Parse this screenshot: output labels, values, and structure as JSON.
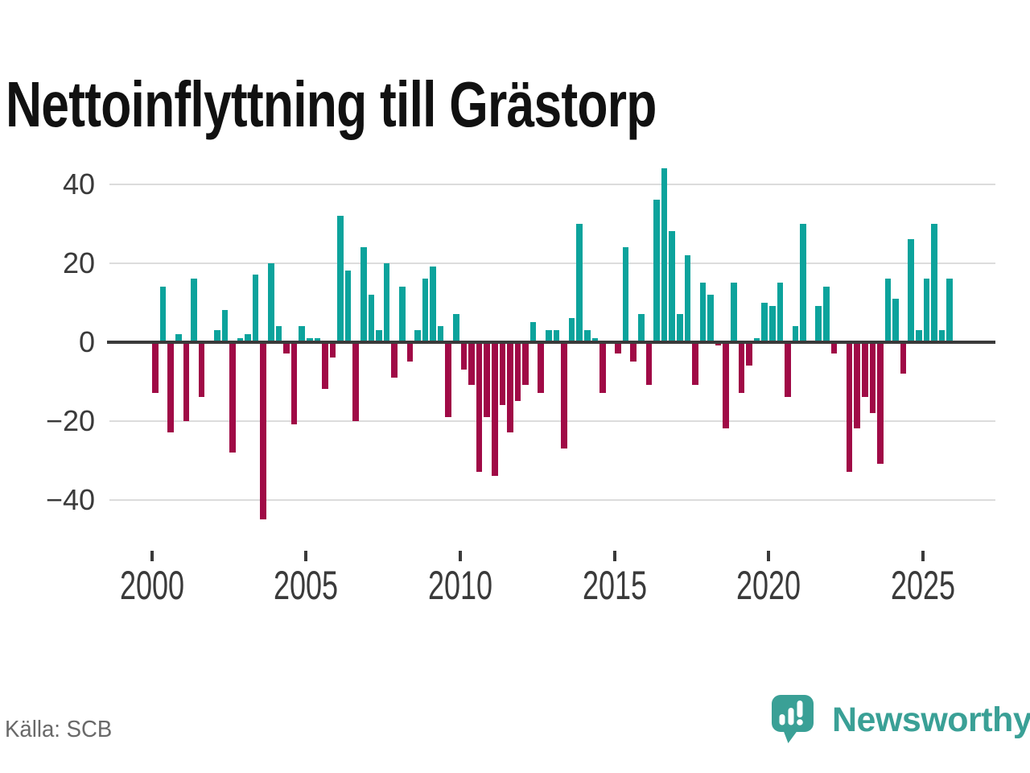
{
  "title": "Nettoinflyttning till Grästorp",
  "source": "Källa: SCB",
  "brand": {
    "name": "Newsworthy",
    "icon": "newsworthy-bubble-chart-icon",
    "color": "#3aa096"
  },
  "colors": {
    "positive": "#0ca39c",
    "negative": "#a00a46",
    "axis": "#3a3a3a",
    "gridline": "#dcdcdc",
    "tick_label": "#3a3a3a",
    "title": "#111111",
    "source_text": "#696969"
  },
  "y_axis": {
    "tick_labels": [
      "40",
      "20",
      "0",
      "−20",
      "−40"
    ],
    "tick_values": [
      40,
      20,
      0,
      -20,
      -40
    ]
  },
  "x_axis": {
    "tick_years": [
      "2000",
      "2005",
      "2010",
      "2015",
      "2020",
      "2025"
    ]
  },
  "chart_data": {
    "type": "bar",
    "title": "Nettoinflyttning till Grästorp",
    "xlabel": "",
    "ylabel": "",
    "grid": true,
    "legend": false,
    "ylim": [
      -48,
      46
    ],
    "y_ticks": [
      40,
      20,
      0,
      -20,
      -40
    ],
    "x_tick_years": [
      2000,
      2005,
      2010,
      2015,
      2020,
      2025
    ],
    "x_range": [
      "2000Q1",
      "2025Q4"
    ],
    "x": [
      "2000Q1",
      "2000Q2",
      "2000Q3",
      "2000Q4",
      "2001Q1",
      "2001Q2",
      "2001Q3",
      "2001Q4",
      "2002Q1",
      "2002Q2",
      "2002Q3",
      "2002Q4",
      "2003Q1",
      "2003Q2",
      "2003Q3",
      "2003Q4",
      "2004Q1",
      "2004Q2",
      "2004Q3",
      "2004Q4",
      "2005Q1",
      "2005Q2",
      "2005Q3",
      "2005Q4",
      "2006Q1",
      "2006Q2",
      "2006Q3",
      "2006Q4",
      "2007Q1",
      "2007Q2",
      "2007Q3",
      "2007Q4",
      "2008Q1",
      "2008Q2",
      "2008Q3",
      "2008Q4",
      "2009Q1",
      "2009Q2",
      "2009Q3",
      "2009Q4",
      "2010Q1",
      "2010Q2",
      "2010Q3",
      "2010Q4",
      "2011Q1",
      "2011Q2",
      "2011Q3",
      "2011Q4",
      "2012Q1",
      "2012Q2",
      "2012Q3",
      "2012Q4",
      "2013Q1",
      "2013Q2",
      "2013Q3",
      "2013Q4",
      "2014Q1",
      "2014Q2",
      "2014Q3",
      "2014Q4",
      "2015Q1",
      "2015Q2",
      "2015Q3",
      "2015Q4",
      "2016Q1",
      "2016Q2",
      "2016Q3",
      "2016Q4",
      "2017Q1",
      "2017Q2",
      "2017Q3",
      "2017Q4",
      "2018Q1",
      "2018Q2",
      "2018Q3",
      "2018Q4",
      "2019Q1",
      "2019Q2",
      "2019Q3",
      "2019Q4",
      "2020Q1",
      "2020Q2",
      "2020Q3",
      "2020Q4",
      "2021Q1",
      "2021Q2",
      "2021Q3",
      "2021Q4",
      "2022Q1",
      "2022Q2",
      "2022Q3",
      "2022Q4",
      "2023Q1",
      "2023Q2",
      "2023Q3",
      "2023Q4",
      "2024Q1",
      "2024Q2",
      "2024Q3",
      "2024Q4",
      "2025Q1",
      "2025Q2",
      "2025Q3",
      "2025Q4"
    ],
    "values": [
      -13,
      14,
      -23,
      2,
      -20,
      16,
      -14,
      0,
      3,
      8,
      -28,
      1,
      2,
      17,
      -45,
      20,
      4,
      -3,
      -21,
      4,
      1,
      1,
      -12,
      -4,
      32,
      18,
      -20,
      24,
      12,
      3,
      20,
      -9,
      14,
      -5,
      3,
      16,
      19,
      4,
      -19,
      7,
      -7,
      -11,
      -33,
      -19,
      -34,
      -16,
      -23,
      -15,
      -11,
      5,
      -13,
      3,
      3,
      -27,
      6,
      30,
      3,
      1,
      -13,
      0,
      -3,
      24,
      -5,
      7,
      -11,
      36,
      44,
      28,
      7,
      22,
      -11,
      15,
      12,
      -1,
      -22,
      15,
      -13,
      -6,
      1,
      10,
      9,
      15,
      -14,
      4,
      30,
      0,
      9,
      14,
      -3,
      0,
      -33,
      -22,
      -14,
      -18,
      -31,
      16,
      11,
      -8,
      26,
      3,
      16,
      30,
      3,
      16
    ]
  }
}
